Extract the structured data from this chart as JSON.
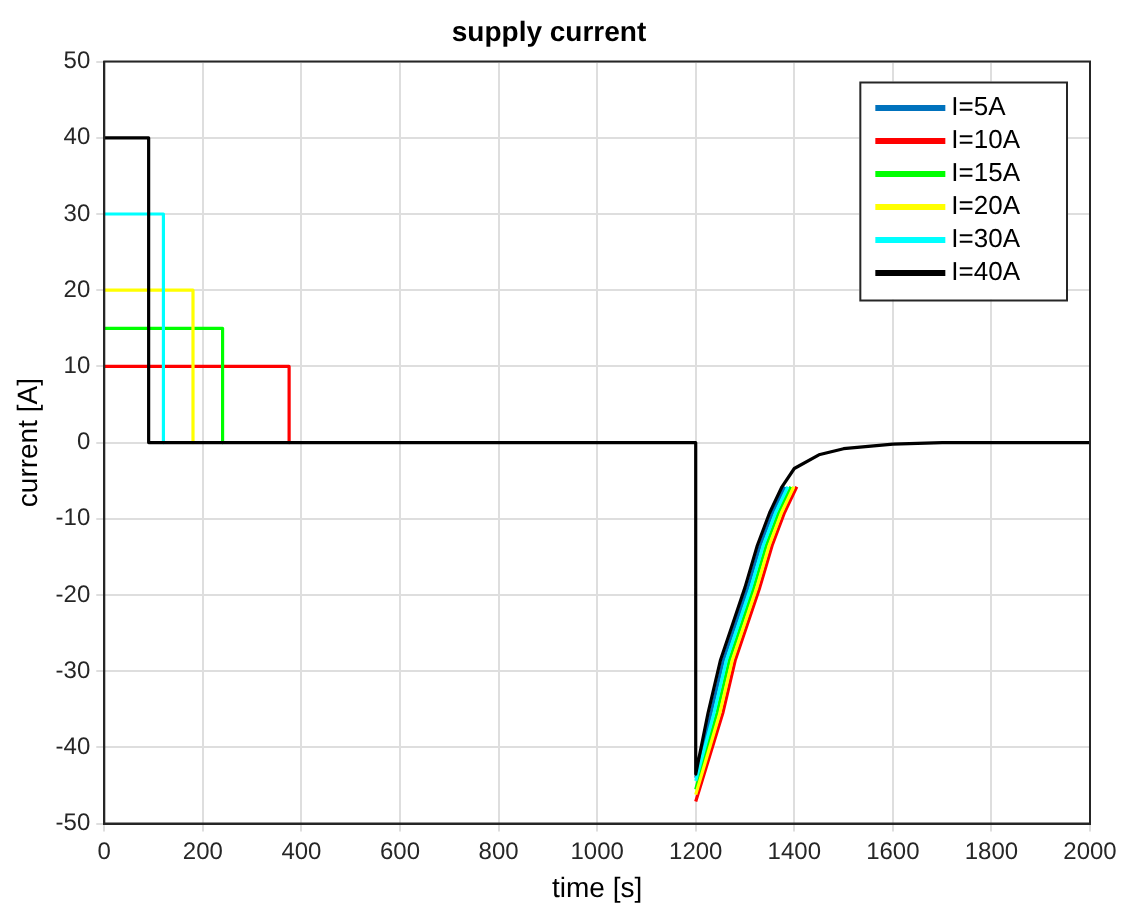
{
  "chart_data": {
    "type": "line",
    "title": "supply current",
    "xlabel": "time [s]",
    "ylabel": "current [A]",
    "xlim": [
      0,
      2000
    ],
    "xticks": [
      0,
      200,
      400,
      600,
      800,
      1000,
      1200,
      1400,
      1600,
      1800,
      2000
    ],
    "ylim": [
      -50,
      50
    ],
    "yticks": [
      -50,
      -40,
      -30,
      -20,
      -10,
      0,
      10,
      20,
      30,
      40,
      50
    ],
    "grid": true,
    "legend": "top right",
    "marker": "none",
    "line_style": "solid",
    "series": [
      {
        "name": "I=5A",
        "color": "#0072bd",
        "x": [
          1200,
          1231,
          1256,
          1281,
          1306,
          1331,
          1356,
          1381
        ],
        "values": [
          -44,
          -35.5,
          -28.6,
          -23.8,
          -19,
          -13.5,
          -9.2,
          -5.8
        ]
      },
      {
        "name": "I=10A",
        "color": "#ff0000",
        "x": [
          0,
          375,
          375,
          null,
          1200,
          1255,
          1280,
          1305,
          1330,
          1355,
          1380,
          1405
        ],
        "values": [
          10,
          10,
          0,
          null,
          -47.1,
          -35.5,
          -28.6,
          -23.8,
          -19,
          -13.5,
          -9.2,
          -5.8
        ]
      },
      {
        "name": "I=15A",
        "color": "#00ff00",
        "x": [
          0,
          240,
          240,
          null,
          1200,
          1243,
          1268,
          1293,
          1318,
          1343,
          1368,
          1393
        ],
        "values": [
          15,
          15,
          0,
          null,
          -45.5,
          -35.5,
          -28.6,
          -23.8,
          -19,
          -13.5,
          -9.2,
          -5.8
        ]
      },
      {
        "name": "I=20A",
        "color": "#ffff00",
        "x": [
          0,
          180,
          180,
          null,
          1200,
          1249,
          1274,
          1299,
          1324,
          1349,
          1374,
          1399
        ],
        "values": [
          20,
          20,
          0,
          null,
          -46.2,
          -35.5,
          -28.6,
          -23.8,
          -19,
          -13.5,
          -9.2,
          -5.8
        ]
      },
      {
        "name": "I=30A",
        "color": "#00ffff",
        "x": [
          0,
          120,
          120,
          null,
          1200,
          1237,
          1262,
          1287,
          1312,
          1337,
          1362,
          1387
        ],
        "values": [
          30,
          30,
          0,
          null,
          -44.4,
          -35.5,
          -28.6,
          -23.8,
          -19,
          -13.5,
          -9.2,
          -5.8
        ]
      },
      {
        "name": "I=40A",
        "color": "#000000",
        "x": [
          0,
          90,
          90,
          1200,
          1200,
          1225,
          1250,
          1275,
          1300,
          1325,
          1350,
          1375,
          1400,
          1450,
          1500,
          1600,
          1700,
          2000
        ],
        "values": [
          40,
          40,
          0,
          0,
          -43.5,
          -35.5,
          -28.6,
          -23.8,
          -19,
          -13.5,
          -9.2,
          -5.8,
          -3.4,
          -1.6,
          -0.8,
          -0.2,
          0,
          0
        ]
      }
    ]
  }
}
